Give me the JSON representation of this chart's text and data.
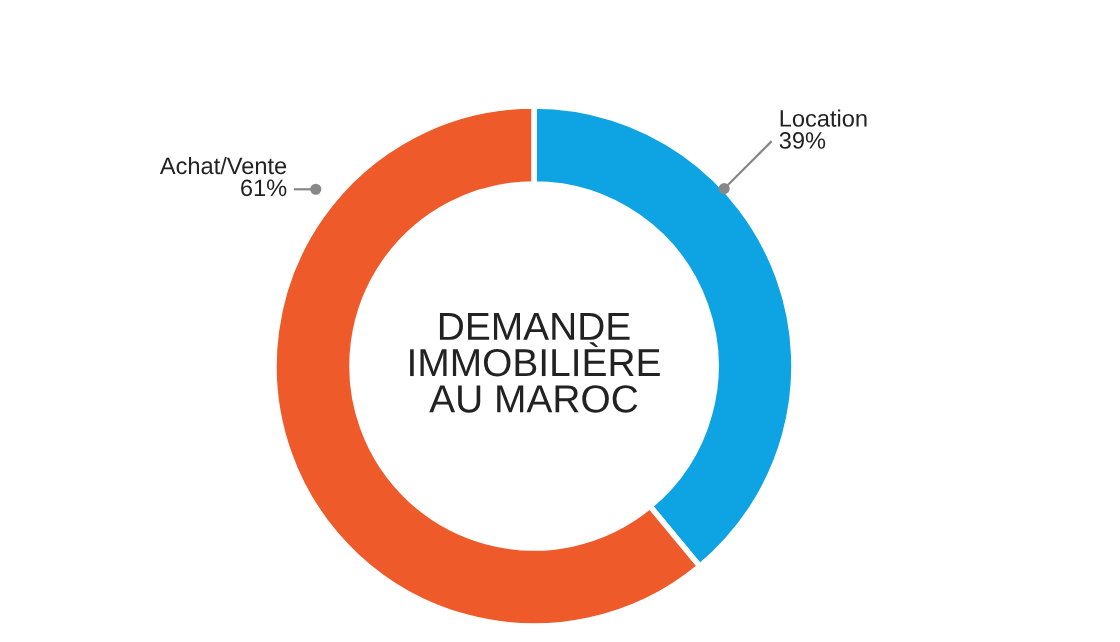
{
  "chart_data": {
    "type": "donut",
    "title": "DEMANDE\nIMMOBILIÈRE\nAU MAROC",
    "categories": [
      "Location",
      "Achat/Vente"
    ],
    "values": [
      39,
      61
    ],
    "colors": [
      "#0ea3e2",
      "#ef5a2b"
    ],
    "value_labels": [
      "39%",
      "61%"
    ]
  }
}
